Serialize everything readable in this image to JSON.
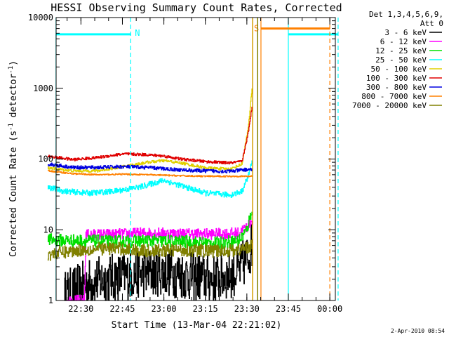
{
  "chart_data": {
    "type": "line",
    "title": "HESSI Observing Summary Count Rates, Corrected",
    "xlabel": "Start Time (13-Mar-04 22:21:02)",
    "ylabel_parts": [
      "Corrected Count Rate (s",
      "-1",
      " detector",
      "-1",
      ")"
    ],
    "yscale": "log",
    "ylim": [
      1,
      10000
    ],
    "xlim": [
      "22:21:02",
      "00:02:00"
    ],
    "x_ticks": [
      {
        "t": 22.5,
        "label": "22:30"
      },
      {
        "t": 22.75,
        "label": "22:45"
      },
      {
        "t": 23.0,
        "label": "23:00"
      },
      {
        "t": 23.25,
        "label": "23:15"
      },
      {
        "t": 23.5,
        "label": "23:30"
      },
      {
        "t": 23.75,
        "label": "23:45"
      },
      {
        "t": 24.0,
        "label": "00:00"
      }
    ],
    "y_ticks": [
      {
        "v": 1,
        "label": "1"
      },
      {
        "v": 10,
        "label": "10"
      },
      {
        "v": 100,
        "label": "100"
      },
      {
        "v": 1000,
        "label": "1000"
      },
      {
        "v": 10000,
        "label": "10000"
      }
    ],
    "legend_header": [
      "Det 1,3,4,5,6,9,",
      "Att 0"
    ],
    "legend_position": "right",
    "series": [
      {
        "name": "3 - 6 keV",
        "color": "#000000",
        "noise": 0.35,
        "ends_at": 23.53,
        "points": [
          [
            22.4,
            1.2
          ],
          [
            22.55,
            1.8
          ],
          [
            22.7,
            2.1
          ],
          [
            22.85,
            2.4
          ],
          [
            23.0,
            2.6
          ],
          [
            23.15,
            2.2
          ],
          [
            23.3,
            2.0
          ],
          [
            23.45,
            2.6
          ],
          [
            23.5,
            4.0
          ],
          [
            23.53,
            6.0
          ]
        ]
      },
      {
        "name": "6 - 12 keV",
        "color": "#ff00ff",
        "noise": 0.08,
        "ends_at": 23.53,
        "points": [
          [
            22.41,
            1.0
          ],
          [
            22.52,
            1.0
          ],
          [
            22.53,
            8.5
          ],
          [
            22.7,
            8.6
          ],
          [
            22.9,
            9.0
          ],
          [
            23.1,
            8.8
          ],
          [
            23.3,
            8.7
          ],
          [
            23.45,
            9.0
          ],
          [
            23.5,
            11.0
          ],
          [
            23.53,
            14.0
          ]
        ]
      },
      {
        "name": "12 - 25 keV",
        "color": "#00e000",
        "noise": 0.09,
        "ends_at": 23.53,
        "points": [
          [
            22.3,
            7.2
          ],
          [
            22.5,
            7.0
          ],
          [
            22.7,
            6.8
          ],
          [
            22.9,
            7.0
          ],
          [
            23.1,
            6.8
          ],
          [
            23.3,
            6.4
          ],
          [
            23.45,
            7.0
          ],
          [
            23.5,
            10.0
          ],
          [
            23.53,
            20.0
          ]
        ]
      },
      {
        "name": "25 - 50 keV",
        "color": "#00ffff",
        "noise": 0.04,
        "ends_at": 23.53,
        "points": [
          [
            22.3,
            40
          ],
          [
            22.4,
            35
          ],
          [
            22.55,
            33
          ],
          [
            22.7,
            35
          ],
          [
            22.85,
            40
          ],
          [
            23.0,
            50
          ],
          [
            23.1,
            42
          ],
          [
            23.25,
            33
          ],
          [
            23.4,
            31
          ],
          [
            23.47,
            35
          ],
          [
            23.51,
            60
          ],
          [
            23.53,
            90
          ]
        ]
      },
      {
        "name": "50 - 100 keV",
        "color": "#e0d000",
        "noise": 0.02,
        "ends_at": 23.53,
        "points": [
          [
            22.3,
            75
          ],
          [
            22.45,
            68
          ],
          [
            22.6,
            68
          ],
          [
            22.75,
            78
          ],
          [
            22.9,
            90
          ],
          [
            23.0,
            95
          ],
          [
            23.1,
            88
          ],
          [
            23.25,
            75
          ],
          [
            23.4,
            72
          ],
          [
            23.47,
            85
          ],
          [
            23.51,
            300
          ],
          [
            23.53,
            1000
          ]
        ]
      },
      {
        "name": "100 - 300 keV",
        "color": "#e00000",
        "noise": 0.02,
        "ends_at": 23.53,
        "points": [
          [
            22.3,
            110
          ],
          [
            22.45,
            98
          ],
          [
            22.6,
            105
          ],
          [
            22.75,
            118
          ],
          [
            22.9,
            115
          ],
          [
            23.0,
            110
          ],
          [
            23.1,
            100
          ],
          [
            23.25,
            92
          ],
          [
            23.4,
            88
          ],
          [
            23.47,
            92
          ],
          [
            23.51,
            250
          ],
          [
            23.53,
            550
          ]
        ]
      },
      {
        "name": "300 - 800 keV",
        "color": "#0000e0",
        "noise": 0.025,
        "ends_at": 23.53,
        "points": [
          [
            22.3,
            85
          ],
          [
            22.45,
            76
          ],
          [
            22.6,
            76
          ],
          [
            22.75,
            78
          ],
          [
            22.9,
            76
          ],
          [
            23.0,
            73
          ],
          [
            23.1,
            70
          ],
          [
            23.25,
            68
          ],
          [
            23.4,
            67
          ],
          [
            23.47,
            70
          ],
          [
            23.53,
            72
          ]
        ]
      },
      {
        "name": "800 - 7000 keV",
        "color": "#ff8000",
        "noise": 0.01,
        "ends_at": 23.53,
        "points": [
          [
            22.3,
            68
          ],
          [
            22.45,
            62
          ],
          [
            22.6,
            60
          ],
          [
            22.75,
            61
          ],
          [
            22.9,
            60
          ],
          [
            23.1,
            58
          ],
          [
            23.25,
            57
          ],
          [
            23.4,
            57
          ],
          [
            23.53,
            57
          ]
        ]
      },
      {
        "name": "7000 - 20000 keV",
        "color": "#808000",
        "noise": 0.09,
        "ends_at": 23.53,
        "points": [
          [
            22.3,
            4.5
          ],
          [
            22.5,
            5.2
          ],
          [
            22.7,
            5.5
          ],
          [
            22.9,
            5.0
          ],
          [
            23.1,
            5.2
          ],
          [
            23.3,
            5.0
          ],
          [
            23.45,
            5.2
          ],
          [
            23.53,
            6.0
          ]
        ]
      }
    ],
    "annotations": [
      {
        "type": "flag",
        "label": "N",
        "color": "#00ffff",
        "y": 5800,
        "segments": [
          [
            22.35,
            22.8
          ],
          [
            23.75,
            24.05
          ]
        ],
        "vlines": [
          {
            "t": 22.35,
            "dash": false
          },
          {
            "t": 22.8,
            "dash": true
          },
          {
            "t": 23.75,
            "dash": false
          },
          {
            "t": 24.05,
            "dash": true
          }
        ]
      },
      {
        "type": "flag",
        "label": "S",
        "color": "#ff8000",
        "y": 7000,
        "segments": [
          [
            23.585,
            24.0
          ]
        ],
        "vlines": [
          {
            "t": 23.585,
            "dash": false
          },
          {
            "t": 24.0,
            "dash": true
          }
        ]
      },
      {
        "type": "vline",
        "t": 23.535,
        "color": "#d4a000",
        "dash": false
      },
      {
        "type": "vline",
        "t": 23.565,
        "color": "#808000",
        "dash": false
      }
    ]
  },
  "footer": {
    "date": "2-Apr-2010 08:54"
  }
}
